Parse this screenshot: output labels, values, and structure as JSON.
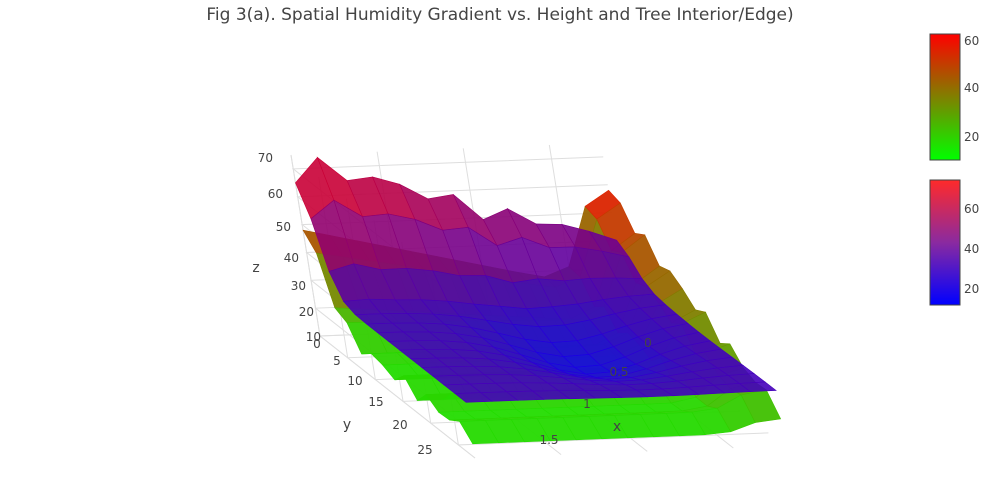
{
  "chart_data": {
    "type": "surface",
    "title": "Fig 3(a). Spatial Humidity Gradient vs. Height and Tree Interior/Edge)",
    "xlabel": "x",
    "ylabel": "y",
    "zlabel": "z",
    "x_ticks": [
      "0",
      "0.5",
      "1",
      "1.5"
    ],
    "y_ticks": [
      "0",
      "5",
      "10",
      "15",
      "20",
      "25"
    ],
    "z_ticks": [
      "10",
      "20",
      "30",
      "40",
      "50",
      "60",
      "70"
    ],
    "xlim": [
      0,
      1.8
    ],
    "ylim": [
      0,
      28
    ],
    "zlim": [
      10,
      75
    ],
    "grid": true,
    "legend": "right",
    "series": [
      {
        "colorscale": [
          "#00ff00",
          "#ff0000"
        ],
        "colorbar_ticks": [
          "20",
          "40",
          "60"
        ],
        "colorbar_range": [
          10,
          62
        ],
        "note_points": [
          [
            0,
            0,
            60
          ],
          [
            0,
            10,
            22
          ],
          [
            0,
            15,
            20
          ],
          [
            0,
            28,
            20
          ],
          [
            1.8,
            0,
            48
          ],
          [
            1.8,
            28,
            22
          ]
        ]
      },
      {
        "colorscale": [
          "#0000ff",
          "#ff0000"
        ],
        "colorbar_ticks": [
          "20",
          "40",
          "60"
        ],
        "colorbar_range": [
          12,
          78
        ],
        "note_points": [
          [
            0,
            0,
            75
          ],
          [
            0,
            28,
            30
          ],
          [
            1.2,
            14,
            18
          ],
          [
            1.8,
            0,
            40
          ],
          [
            1.8,
            28,
            14
          ]
        ]
      }
    ]
  }
}
